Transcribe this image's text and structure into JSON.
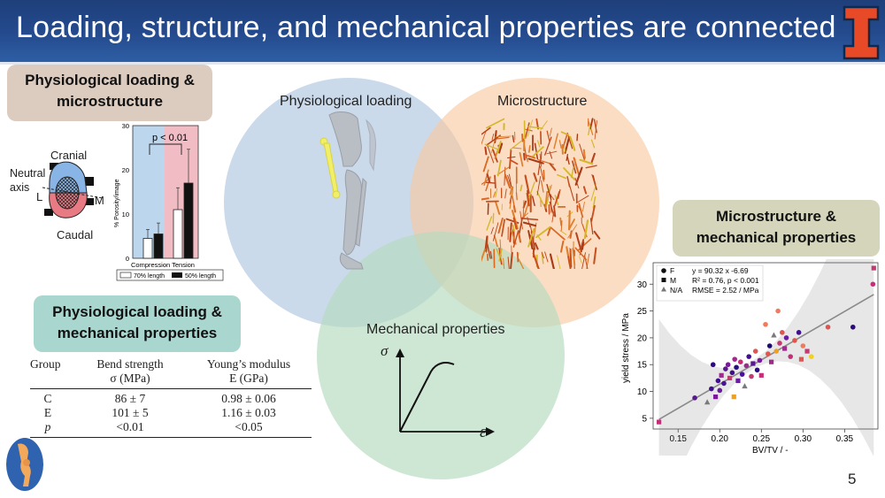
{
  "slide": {
    "title": "Loading, structure, and mechanical properties are connected",
    "page_number": "5"
  },
  "venn": {
    "loading_label": "Physiological loading",
    "micro_label": "Microstructure",
    "mech_label": "Mechanical properties",
    "sigma": "σ",
    "epsilon": "ε"
  },
  "boxes": {
    "pl_line1": "Physiological loading &",
    "pl_line2": "microstructure",
    "mm_line1": "Microstructure &",
    "mm_line2": "mechanical properties",
    "pm_line1": "Physiological loading &",
    "pm_line2": "mechanical properties"
  },
  "bone_diagram": {
    "cranial": "Cranial",
    "neutral_axis": "Neutral axis",
    "L": "L",
    "M": "M",
    "caudal": "Caudal"
  },
  "porosity_chart": {
    "ylabel": "% Porosity/image",
    "yticks": [
      "0",
      "10",
      "20",
      "30"
    ],
    "p_label": "p < 0.01",
    "xlabel": "Compression Tension",
    "legend": [
      "70% length",
      "50% length"
    ],
    "bars": [
      {
        "region": "compression",
        "series": "70% length",
        "value": 4.5
      },
      {
        "region": "compression",
        "series": "50% length",
        "value": 5.5
      },
      {
        "region": "tension",
        "series": "70% length",
        "value": 11
      },
      {
        "region": "tension",
        "series": "50% length",
        "value": 17
      }
    ]
  },
  "table": {
    "headers": [
      "Group",
      "Bend strength",
      "Young’s modulus"
    ],
    "subheaders": [
      "",
      "σ (MPa)",
      "E (GPa)"
    ],
    "rows": [
      [
        "C",
        "86 ± 7",
        "0.98 ± 0.06"
      ],
      [
        "E",
        "101 ± 5",
        "1.16 ± 0.03"
      ],
      [
        "p",
        "<0.01",
        "<0.05"
      ]
    ]
  },
  "chart_data": {
    "type": "scatter",
    "xlabel": "BV/TV / -",
    "ylabel": "yield stress / MPa",
    "xlim": [
      0.12,
      0.39
    ],
    "ylim": [
      3,
      34
    ],
    "xticks": [
      0.15,
      0.2,
      0.25,
      0.3,
      0.35
    ],
    "yticks": [
      5,
      10,
      15,
      20,
      25,
      30
    ],
    "legend": [
      "F",
      "M",
      "N/A"
    ],
    "annotation": [
      "y = 90.32 x  -6.69",
      "R² = 0.76, p < 0.001",
      "RMSE = 2.52 / MPa"
    ],
    "fit": {
      "slope": 90.32,
      "intercept": -6.69
    },
    "points": [
      {
        "x": 0.127,
        "y": 4.3,
        "m": "s",
        "c": "#c72c78"
      },
      {
        "x": 0.17,
        "y": 8.8,
        "m": "o",
        "c": "#5a1890"
      },
      {
        "x": 0.185,
        "y": 8.0,
        "m": "^",
        "c": "#7a7a7a"
      },
      {
        "x": 0.19,
        "y": 10.5,
        "m": "o",
        "c": "#3f0f8f"
      },
      {
        "x": 0.192,
        "y": 15.0,
        "m": "o",
        "c": "#2c0a80"
      },
      {
        "x": 0.195,
        "y": 9.0,
        "m": "s",
        "c": "#7a1a9a"
      },
      {
        "x": 0.198,
        "y": 12.0,
        "m": "o",
        "c": "#3f0f8f"
      },
      {
        "x": 0.2,
        "y": 10.2,
        "m": "o",
        "c": "#6a1ba0"
      },
      {
        "x": 0.202,
        "y": 13.0,
        "m": "s",
        "c": "#9e2a8c"
      },
      {
        "x": 0.205,
        "y": 11.5,
        "m": "o",
        "c": "#4a129a"
      },
      {
        "x": 0.207,
        "y": 14.2,
        "m": "o",
        "c": "#5a1890"
      },
      {
        "x": 0.21,
        "y": 15.0,
        "m": "o",
        "c": "#7a1a9a"
      },
      {
        "x": 0.212,
        "y": 12.5,
        "m": "s",
        "c": "#c23a6f"
      },
      {
        "x": 0.215,
        "y": 13.5,
        "m": "o",
        "c": "#3f0f8f"
      },
      {
        "x": 0.217,
        "y": 9.0,
        "m": "s",
        "c": "#f0a020"
      },
      {
        "x": 0.218,
        "y": 16.0,
        "m": "o",
        "c": "#9e2a8c"
      },
      {
        "x": 0.22,
        "y": 14.5,
        "m": "o",
        "c": "#2c0a80"
      },
      {
        "x": 0.222,
        "y": 12.0,
        "m": "s",
        "c": "#6a1ba0"
      },
      {
        "x": 0.225,
        "y": 15.5,
        "m": "o",
        "c": "#c72c78"
      },
      {
        "x": 0.227,
        "y": 13.2,
        "m": "o",
        "c": "#4a129a"
      },
      {
        "x": 0.23,
        "y": 11.0,
        "m": "^",
        "c": "#7a7a7a"
      },
      {
        "x": 0.232,
        "y": 14.8,
        "m": "o",
        "c": "#9e2a8c"
      },
      {
        "x": 0.235,
        "y": 16.5,
        "m": "o",
        "c": "#3f0f8f"
      },
      {
        "x": 0.238,
        "y": 12.8,
        "m": "o",
        "c": "#c23a6f"
      },
      {
        "x": 0.24,
        "y": 15.2,
        "m": "s",
        "c": "#5a1890"
      },
      {
        "x": 0.243,
        "y": 17.5,
        "m": "o",
        "c": "#e0554e"
      },
      {
        "x": 0.245,
        "y": 14.0,
        "m": "o",
        "c": "#2c0a80"
      },
      {
        "x": 0.248,
        "y": 15.8,
        "m": "o",
        "c": "#7a1a9a"
      },
      {
        "x": 0.25,
        "y": 13.0,
        "m": "s",
        "c": "#c72c78"
      },
      {
        "x": 0.255,
        "y": 22.5,
        "m": "o",
        "c": "#f07a5a"
      },
      {
        "x": 0.258,
        "y": 17.0,
        "m": "o",
        "c": "#e0554e"
      },
      {
        "x": 0.26,
        "y": 18.5,
        "m": "o",
        "c": "#1a0a70"
      },
      {
        "x": 0.262,
        "y": 15.5,
        "m": "s",
        "c": "#9e2a8c"
      },
      {
        "x": 0.265,
        "y": 20.5,
        "m": "^",
        "c": "#7a7a7a"
      },
      {
        "x": 0.268,
        "y": 17.5,
        "m": "o",
        "c": "#f0a020"
      },
      {
        "x": 0.27,
        "y": 25.0,
        "m": "o",
        "c": "#f07a5a"
      },
      {
        "x": 0.272,
        "y": 19.0,
        "m": "o",
        "c": "#c23a6f"
      },
      {
        "x": 0.275,
        "y": 21.0,
        "m": "o",
        "c": "#e0554e"
      },
      {
        "x": 0.278,
        "y": 18.0,
        "m": "s",
        "c": "#9e2a8c"
      },
      {
        "x": 0.28,
        "y": 20.0,
        "m": "o",
        "c": "#6a1ba0"
      },
      {
        "x": 0.285,
        "y": 16.5,
        "m": "o",
        "c": "#c72c78"
      },
      {
        "x": 0.29,
        "y": 19.5,
        "m": "o",
        "c": "#e0554e"
      },
      {
        "x": 0.295,
        "y": 21.0,
        "m": "o",
        "c": "#3f0f8f"
      },
      {
        "x": 0.298,
        "y": 16.0,
        "m": "s",
        "c": "#e0554e"
      },
      {
        "x": 0.3,
        "y": 18.5,
        "m": "o",
        "c": "#f07a5a"
      },
      {
        "x": 0.305,
        "y": 17.5,
        "m": "s",
        "c": "#c23a6f"
      },
      {
        "x": 0.31,
        "y": 16.5,
        "m": "o",
        "c": "#f0d020"
      },
      {
        "x": 0.33,
        "y": 22.0,
        "m": "o",
        "c": "#e0554e"
      },
      {
        "x": 0.36,
        "y": 22.0,
        "m": "o",
        "c": "#2c0a80"
      },
      {
        "x": 0.384,
        "y": 30.0,
        "m": "o",
        "c": "#c72c78"
      },
      {
        "x": 0.385,
        "y": 33.0,
        "m": "s",
        "c": "#c23a6f"
      }
    ]
  }
}
